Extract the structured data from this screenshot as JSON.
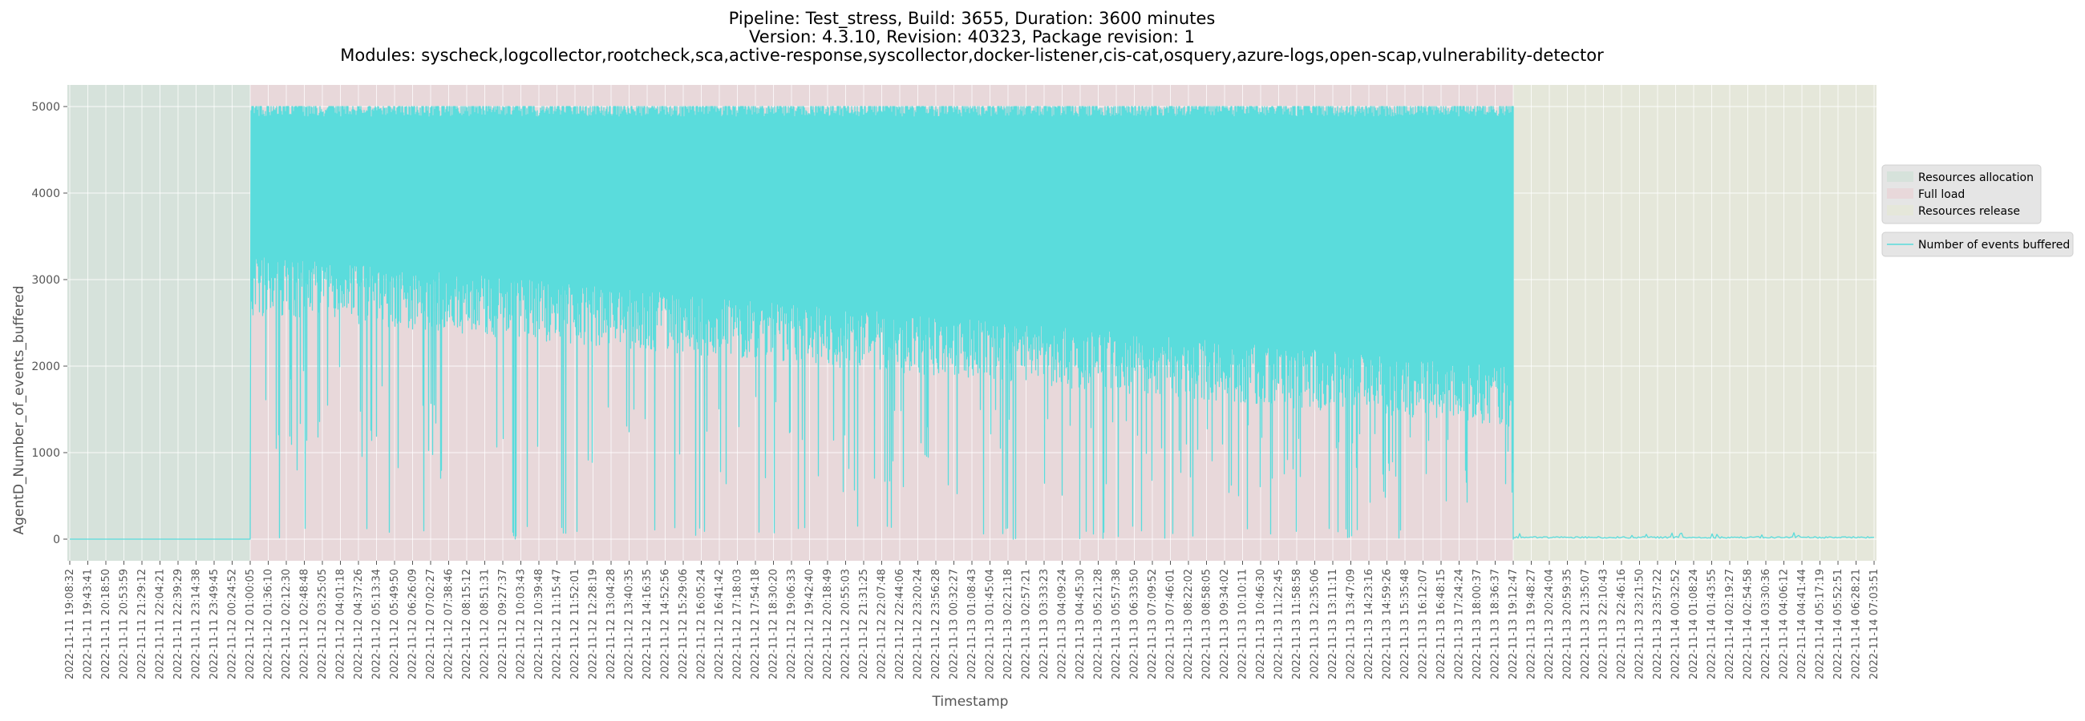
{
  "chart_data": {
    "type": "line",
    "title_lines": [
      "Pipeline: Test_stress, Build: 3655, Duration: 3600 minutes",
      "Version: 4.3.10, Revision: 40323, Package revision: 1",
      "Modules: syscheck,logcollector,rootcheck,sca,active-response,syscollector,docker-listener,cis-cat,osquery,azure-logs,open-scap,vulnerability-detector"
    ],
    "xlabel": "Timestamp",
    "ylabel": "AgentD_Number_of_events_buffered",
    "ylim": [
      -250,
      5250
    ],
    "yticks": [
      0,
      1000,
      2000,
      3000,
      4000,
      5000
    ],
    "grid": true,
    "legend_position": "right",
    "x_ticks": [
      "2022-11-11 19:08:32",
      "2022-11-11 19:43:41",
      "2022-11-11 20:18:50",
      "2022-11-11 20:53:59",
      "2022-11-11 21:29:12",
      "2022-11-11 22:04:21",
      "2022-11-11 22:39:29",
      "2022-11-11 23:14:38",
      "2022-11-11 23:49:45",
      "2022-11-12 00:24:52",
      "2022-11-12 01:00:05",
      "2022-11-12 01:36:10",
      "2022-11-12 02:12:30",
      "2022-11-12 02:48:48",
      "2022-11-12 03:25:05",
      "2022-11-12 04:01:18",
      "2022-11-12 04:37:26",
      "2022-11-12 05:13:34",
      "2022-11-12 05:49:50",
      "2022-11-12 06:26:09",
      "2022-11-12 07:02:27",
      "2022-11-12 07:38:46",
      "2022-11-12 08:15:12",
      "2022-11-12 08:51:31",
      "2022-11-12 09:27:37",
      "2022-11-12 10:03:43",
      "2022-11-12 10:39:48",
      "2022-11-12 11:15:47",
      "2022-11-12 11:52:01",
      "2022-11-12 12:28:19",
      "2022-11-12 13:04:28",
      "2022-11-12 13:40:35",
      "2022-11-12 14:16:35",
      "2022-11-12 14:52:56",
      "2022-11-12 15:29:06",
      "2022-11-12 16:05:24",
      "2022-11-12 16:41:42",
      "2022-11-12 17:18:03",
      "2022-11-12 17:54:18",
      "2022-11-12 18:30:20",
      "2022-11-12 19:06:33",
      "2022-11-12 19:42:40",
      "2022-11-12 20:18:49",
      "2022-11-12 20:55:03",
      "2022-11-12 21:31:25",
      "2022-11-12 22:07:48",
      "2022-11-12 22:44:06",
      "2022-11-12 23:20:24",
      "2022-11-12 23:56:28",
      "2022-11-13 00:32:27",
      "2022-11-13 01:08:43",
      "2022-11-13 01:45:04",
      "2022-11-13 02:21:18",
      "2022-11-13 02:57:21",
      "2022-11-13 03:33:23",
      "2022-11-13 04:09:24",
      "2022-11-13 04:45:30",
      "2022-11-13 05:21:28",
      "2022-11-13 05:57:38",
      "2022-11-13 06:33:50",
      "2022-11-13 07:09:52",
      "2022-11-13 07:46:01",
      "2022-11-13 08:22:02",
      "2022-11-13 08:58:05",
      "2022-11-13 09:34:02",
      "2022-11-13 10:10:11",
      "2022-11-13 10:46:30",
      "2022-11-13 11:22:45",
      "2022-11-13 11:58:58",
      "2022-11-13 12:35:06",
      "2022-11-13 13:11:11",
      "2022-11-13 13:47:09",
      "2022-11-13 14:23:16",
      "2022-11-13 14:59:26",
      "2022-11-13 15:35:48",
      "2022-11-13 16:12:07",
      "2022-11-13 16:48:15",
      "2022-11-13 17:24:24",
      "2022-11-13 18:00:37",
      "2022-11-13 18:36:37",
      "2022-11-13 19:12:47",
      "2022-11-13 19:48:27",
      "2022-11-13 20:24:04",
      "2022-11-13 20:59:35",
      "2022-11-13 21:35:07",
      "2022-11-13 22:10:43",
      "2022-11-13 22:46:16",
      "2022-11-13 23:21:50",
      "2022-11-13 23:57:22",
      "2022-11-14 00:32:52",
      "2022-11-14 01:08:24",
      "2022-11-14 01:43:55",
      "2022-11-14 02:19:27",
      "2022-11-14 02:54:58",
      "2022-11-14 03:30:36",
      "2022-11-14 04:06:12",
      "2022-11-14 04:41:44",
      "2022-11-14 05:17:19",
      "2022-11-14 05:52:51",
      "2022-11-14 06:28:21",
      "2022-11-14 07:03:51"
    ],
    "phases": [
      {
        "name": "Resources allocation",
        "start": "2022-11-11 19:08:32",
        "end": "2022-11-12 01:00:05",
        "color": "#d6e2db"
      },
      {
        "name": "Full load",
        "start": "2022-11-12 01:00:05",
        "end": "2022-11-13 19:12:47",
        "color": "#e8d8da"
      },
      {
        "name": "Resources release",
        "start": "2022-11-13 19:12:47",
        "end": "2022-11-14 07:03:51",
        "color": "#e5e7da"
      }
    ],
    "series": [
      {
        "name": "Number of events buffered",
        "color": "#5adcdc",
        "segments": [
          {
            "from": "2022-11-11 19:08:32",
            "to": "2022-11-12 01:00:05",
            "pattern": "flat",
            "value": 0
          },
          {
            "from": "2022-11-12 01:00:05",
            "to": "2022-11-13 19:12:47",
            "pattern": "oscillating",
            "max": 5000,
            "typical_min_start": 2800,
            "typical_min_end": 1500,
            "min": 0
          },
          {
            "from": "2022-11-13 19:12:47",
            "to": "2022-11-14 07:03:51",
            "pattern": "noise",
            "value": 20,
            "max": 80
          }
        ]
      }
    ]
  }
}
